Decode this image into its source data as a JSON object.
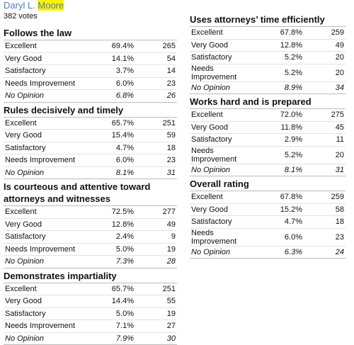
{
  "header": {
    "first_name": "Daryl L.",
    "last_name": "Moore",
    "votes": "382 votes"
  },
  "left_sections": [
    {
      "title": "Follows the law",
      "rows": [
        [
          "Excellent",
          "69.4%",
          "265"
        ],
        [
          "Very Good",
          "14.1%",
          "54"
        ],
        [
          "Satisfactory",
          "3.7%",
          "14"
        ],
        [
          "Needs Improvement",
          "6.0%",
          "23"
        ],
        [
          "No Opinion",
          "6.8%",
          "26"
        ]
      ]
    },
    {
      "title": "Rules decisively and timely",
      "rows": [
        [
          "Excellent",
          "65.7%",
          "251"
        ],
        [
          "Very Good",
          "15.4%",
          "59"
        ],
        [
          "Satisfactory",
          "4.7%",
          "18"
        ],
        [
          "Needs Improvement",
          "6.0%",
          "23"
        ],
        [
          "No Opinion",
          "8.1%",
          "31"
        ]
      ]
    },
    {
      "title": "Is courteous and attentive toward attorneys and witnesses",
      "rows": [
        [
          "Excellent",
          "72.5%",
          "277"
        ],
        [
          "Very Good",
          "12.8%",
          "49"
        ],
        [
          "Satisfactory",
          "2.4%",
          "9"
        ],
        [
          "Needs Improvement",
          "5.0%",
          "19"
        ],
        [
          "No Opinion",
          "7.3%",
          "28"
        ]
      ]
    },
    {
      "title": "Demonstrates impartiality",
      "rows": [
        [
          "Excellent",
          "65.7%",
          "251"
        ],
        [
          "Very Good",
          "14.4%",
          "55"
        ],
        [
          "Satisfactory",
          "5.0%",
          "19"
        ],
        [
          "Needs Improvement",
          "7.1%",
          "27"
        ],
        [
          "No Opinion",
          "7.9%",
          "30"
        ]
      ]
    }
  ],
  "right_sections": [
    {
      "title": "Uses attorneys’ time efficiently",
      "rows": [
        [
          "Excellent",
          "67.8%",
          "259"
        ],
        [
          "Very Good",
          "12.8%",
          "49"
        ],
        [
          "Satisfactory",
          "5.2%",
          "20"
        ],
        [
          "Needs Improvement",
          "5.2%",
          "20"
        ],
        [
          "No Opinion",
          "8.9%",
          "34"
        ]
      ]
    },
    {
      "title": "Works hard and is prepared",
      "rows": [
        [
          "Excellent",
          "72.0%",
          "275"
        ],
        [
          "Very Good",
          "11.8%",
          "45"
        ],
        [
          "Satisfactory",
          "2.9%",
          "11"
        ],
        [
          "Needs Improvement",
          "5.2%",
          "20"
        ],
        [
          "No Opinion",
          "8.1%",
          "31"
        ]
      ]
    },
    {
      "title": "Overall rating",
      "rows": [
        [
          "Excellent",
          "67.8%",
          "259"
        ],
        [
          "Very Good",
          "15.2%",
          "58"
        ],
        [
          "Satisfactory",
          "4.7%",
          "18"
        ],
        [
          "Needs Improvement",
          "6.0%",
          "23"
        ],
        [
          "No Opinion",
          "6.3%",
          "24"
        ]
      ]
    }
  ]
}
